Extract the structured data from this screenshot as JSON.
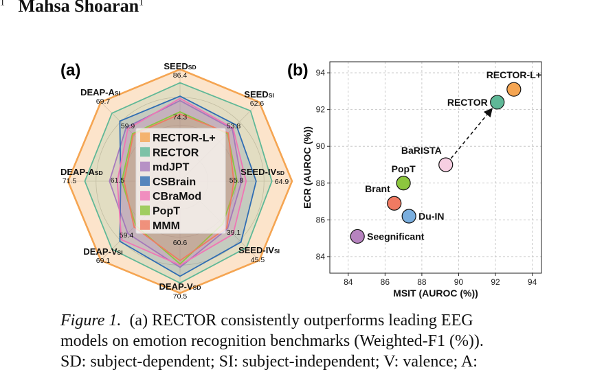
{
  "header": {
    "author_prefix": "",
    "author_sup_left": "1",
    "author_name": "Mahsa Shoaran",
    "author_sup_right": "1"
  },
  "figure": {
    "panel_a_label": "(a)",
    "panel_b_label": "(b)"
  },
  "caption": {
    "label": "Figure 1.",
    "text_line1": "(a) RECTOR consistently outperforms leading EEG",
    "text_line2": "models on emotion recognition benchmarks (Weighted-F1 (%)).",
    "text_line3": "SD: subject-dependent; SI: subject-independent; V: valence; A:"
  },
  "chart_data": [
    {
      "type": "radar",
      "axes": [
        {
          "main": "SEED",
          "sub": "SD",
          "outer": "86.4",
          "inner": "74.3"
        },
        {
          "main": "SEED",
          "sub": "SI",
          "outer": "62.6",
          "inner": "53.8"
        },
        {
          "main": "SEED-IV",
          "sub": "SD",
          "outer": "64.9",
          "inner": "55.8"
        },
        {
          "main": "SEED-IV",
          "sub": "SI",
          "outer": "45.5",
          "inner": "39.1"
        },
        {
          "main": "DEAP-V",
          "sub": "SD",
          "outer": "70.5",
          "inner": "60.6"
        },
        {
          "main": "DEAP-V",
          "sub": "SI",
          "outer": "69.1",
          "inner": "59.4"
        },
        {
          "main": "DEAP-A",
          "sub": "SD",
          "outer": "71.5",
          "inner": "61.5"
        },
        {
          "main": "DEAP-A",
          "sub": "SI",
          "outer": "69.7",
          "inner": "59.9"
        }
      ],
      "scale": [
        0,
        1
      ],
      "series": [
        {
          "name": "RECTOR-L+",
          "color": "#f5a552",
          "values": [
            1.0,
            1.0,
            1.0,
            1.0,
            1.0,
            1.0,
            1.0,
            1.0
          ]
        },
        {
          "name": "RECTOR",
          "color": "#5fb897",
          "values": [
            0.88,
            0.89,
            0.82,
            0.84,
            0.91,
            0.86,
            0.85,
            0.86
          ]
        },
        {
          "name": "mdJPT",
          "color": "#a87bbd",
          "values": [
            0.72,
            0.66,
            0.55,
            0.6,
            0.77,
            0.66,
            0.63,
            0.68
          ]
        },
        {
          "name": "CSBrain",
          "color": "#2f6db3",
          "values": [
            0.76,
            0.71,
            0.68,
            0.77,
            0.85,
            0.76,
            0.53,
            0.76
          ]
        },
        {
          "name": "CBraMod",
          "color": "#f075b5",
          "values": [
            0.74,
            0.67,
            0.59,
            0.67,
            0.75,
            0.74,
            0.56,
            0.66
          ]
        },
        {
          "name": "PopT",
          "color": "#8cc63e",
          "values": [
            0.62,
            0.6,
            0.51,
            0.54,
            0.74,
            0.56,
            0.52,
            0.6
          ]
        },
        {
          "name": "MMM",
          "color": "#f07a62",
          "values": [
            0.6,
            0.61,
            0.48,
            0.59,
            0.71,
            0.58,
            0.5,
            0.59
          ]
        }
      ],
      "legend_position": "center"
    },
    {
      "type": "scatter",
      "xlabel": "MSIT (AUROC (%))",
      "ylabel": "ECR (AUROC (%))",
      "xlim": [
        83.0,
        94.5
      ],
      "ylim": [
        83.1,
        94.6
      ],
      "xticks": [
        84,
        86,
        88,
        90,
        92,
        94
      ],
      "yticks": [
        84,
        86,
        88,
        90,
        92,
        94
      ],
      "grid": true,
      "points": [
        {
          "name": "RECTOR-L+",
          "x": 93.0,
          "y": 93.1,
          "color": "#f5a552",
          "label_pos": "above"
        },
        {
          "name": "RECTOR",
          "x": 92.1,
          "y": 92.4,
          "color": "#5fb897",
          "label_pos": "left"
        },
        {
          "name": "BaRISTA",
          "x": 89.3,
          "y": 89.0,
          "color": "#f7cfe2",
          "label_pos": "above-left"
        },
        {
          "name": "PopT",
          "x": 87.0,
          "y": 88.0,
          "color": "#8cc63e",
          "label_pos": "above"
        },
        {
          "name": "Brant",
          "x": 86.5,
          "y": 86.9,
          "color": "#f07a62",
          "label_pos": "above-left"
        },
        {
          "name": "Du-IN",
          "x": 87.3,
          "y": 86.2,
          "color": "#7aaede",
          "label_pos": "right"
        },
        {
          "name": "Seegnificant",
          "x": 84.5,
          "y": 85.1,
          "color": "#b683bf",
          "label_pos": "right"
        }
      ],
      "arrow": {
        "from": "BaRISTA",
        "to": "RECTOR",
        "style": "dashed"
      }
    }
  ]
}
